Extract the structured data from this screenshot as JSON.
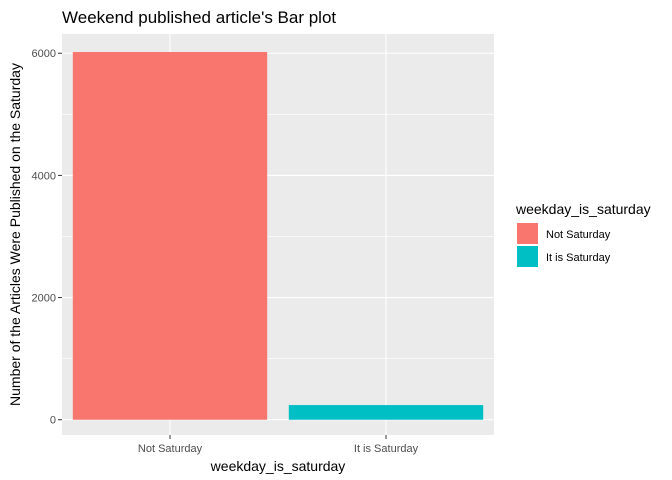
{
  "chart_data": {
    "type": "bar",
    "title": "Weekend published article's Bar plot",
    "xlabel": "weekday_is_saturday",
    "ylabel": "Number of the Articles Were Published on the Saturday",
    "categories": [
      "Not Saturday",
      "It is Saturday"
    ],
    "values": [
      6020,
      240
    ],
    "colors": [
      "#F8766D",
      "#00BFC4"
    ],
    "ylim": [
      -250,
      6315
    ],
    "yticks": [
      0,
      2000,
      4000,
      6000
    ],
    "yminor": [
      1000,
      3000,
      5000
    ],
    "grid": true,
    "panel_background": "#EBEBEB",
    "grid_color": "#FFFFFF",
    "legend": {
      "title": "weekday_is_saturday",
      "position": "right",
      "entries": [
        "Not Saturday",
        "It is Saturday"
      ]
    }
  }
}
